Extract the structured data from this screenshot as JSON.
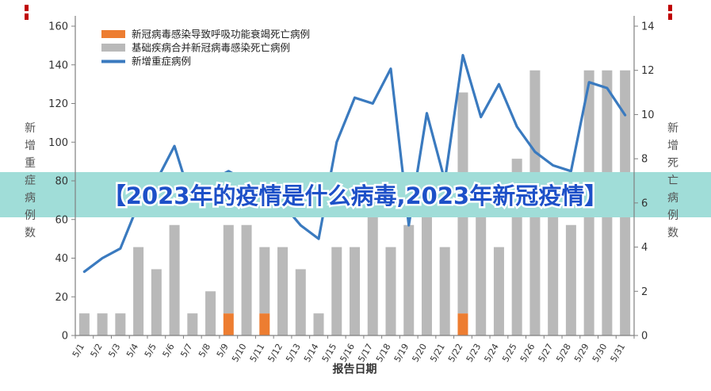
{
  "banner": {
    "text": "【2023年的疫情是什么病毒,2023年新冠疫情】",
    "bg": "#a0ddd8",
    "color": "#1d50c8"
  },
  "chart_data": {
    "type": "combo",
    "categories": [
      "5/1",
      "5/2",
      "5/3",
      "5/4",
      "5/5",
      "5/6",
      "5/7",
      "5/8",
      "5/9",
      "5/10",
      "5/11",
      "5/12",
      "5/13",
      "5/14",
      "5/15",
      "5/16",
      "5/17",
      "5/18",
      "5/19",
      "5/20",
      "5/21",
      "5/22",
      "5/23",
      "5/24",
      "5/25",
      "5/26",
      "5/27",
      "5/28",
      "5/29",
      "5/30",
      "5/31"
    ],
    "series": [
      {
        "name": "新冠病毒感染导致呼吸功能衰竭死亡病例",
        "type": "bar",
        "stacked": true,
        "axis": "right",
        "color": "#ed7d31",
        "values": [
          0,
          0,
          0,
          0,
          0,
          0,
          0,
          0,
          1,
          0,
          1,
          0,
          0,
          0,
          0,
          0,
          0,
          0,
          0,
          0,
          0,
          1,
          0,
          0,
          0,
          0,
          0,
          0,
          0,
          0,
          0
        ]
      },
      {
        "name": "基础疾病合并新冠病毒感染死亡病例",
        "type": "bar",
        "stacked": true,
        "axis": "right",
        "color": "#b9b9b9",
        "values": [
          1,
          1,
          1,
          4,
          3,
          5,
          1,
          2,
          4,
          5,
          3,
          4,
          3,
          1,
          4,
          4,
          7,
          4,
          5,
          6,
          4,
          10,
          6,
          4,
          8,
          12,
          6,
          5,
          12,
          12,
          12
        ]
      },
      {
        "name": "新增重症病例",
        "type": "line",
        "axis": "left",
        "color": "#3a7abf",
        "values": [
          33,
          40,
          45,
          68,
          80,
          98,
          68,
          80,
          85,
          80,
          75,
          68,
          57,
          50,
          100,
          123,
          120,
          138,
          57,
          115,
          80,
          145,
          113,
          130,
          108,
          95,
          88,
          85,
          131,
          128,
          114
        ]
      }
    ],
    "left_axis": {
      "title": "新增重症病例数",
      "min": 0,
      "max": 160,
      "ticks": [
        0,
        20,
        40,
        60,
        80,
        100,
        120,
        140,
        160
      ]
    },
    "right_axis": {
      "title": "新增死亡病例数",
      "min": 0,
      "max": 14,
      "ticks": [
        0,
        2,
        4,
        6,
        8,
        10,
        12,
        14
      ]
    },
    "xlabel": "报告日期",
    "legend_position": "top-left",
    "grid": false
  }
}
